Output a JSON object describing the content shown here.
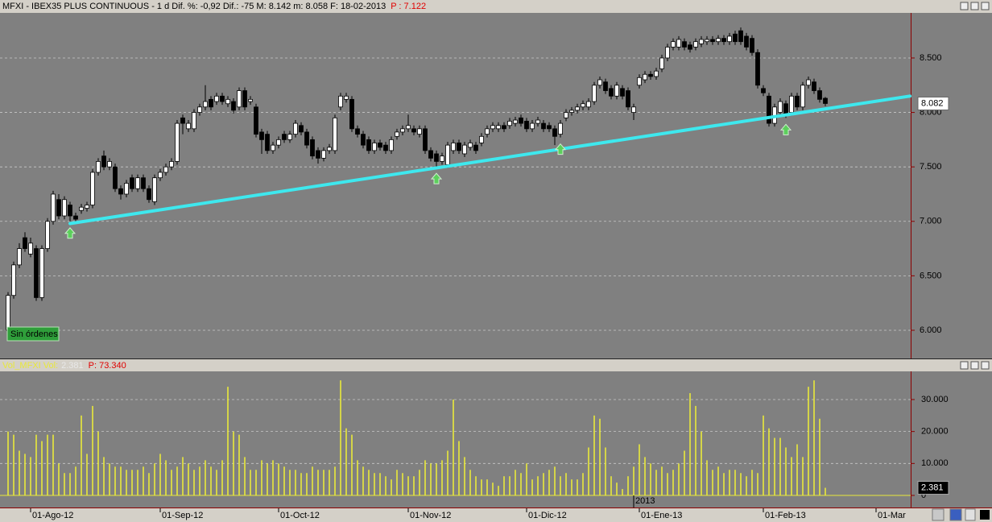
{
  "chart_data": [
    {
      "type": "candlestick",
      "title": "MFXI - IBEX35 PLUS CONTINUOUS - 1 d  Dif. %: -0,92  Dif.: -75  M: 8.142  m: 8.058  F: 18-02-2013",
      "title_price": "P : 7.122",
      "status": "Sin órdenes",
      "last_price_label": "8.082",
      "ylim": [
        5.741,
        8.914
      ],
      "yticks": [
        {
          "value": 6,
          "label": "6.000"
        },
        {
          "value": 6.5,
          "label": "6.500"
        },
        {
          "value": 7,
          "label": "7.000"
        },
        {
          "value": 7.5,
          "label": "7.500"
        },
        {
          "value": 8,
          "label": "8.000"
        },
        {
          "value": 8.5,
          "label": "8.500"
        }
      ],
      "grid": true,
      "up_color": "#ffffff",
      "down_color": "#000000",
      "trendline": {
        "x": [
          11,
          160
        ],
        "y": [
          6.98,
          8.15
        ],
        "color": "#3ee8ee"
      },
      "signals": [
        11,
        76,
        98,
        138
      ],
      "signal_color": "#5ccf5c",
      "ohlc": [
        [
          6.0,
          6.35,
          5.95,
          6.32
        ],
        [
          6.32,
          6.63,
          6.29,
          6.6
        ],
        [
          6.6,
          6.8,
          6.57,
          6.75
        ],
        [
          6.85,
          6.9,
          6.72,
          6.75
        ],
        [
          6.7,
          6.85,
          6.67,
          6.8
        ],
        [
          6.75,
          6.78,
          6.27,
          6.3
        ],
        [
          6.3,
          6.78,
          6.27,
          6.75
        ],
        [
          6.75,
          7.03,
          6.72,
          7.0
        ],
        [
          7.0,
          7.28,
          6.97,
          7.25
        ],
        [
          7.2,
          7.25,
          7.02,
          7.05
        ],
        [
          7.05,
          7.23,
          7.02,
          7.2
        ],
        [
          7.15,
          7.18,
          7.0,
          7.05
        ],
        [
          7.05,
          7.08,
          6.99,
          7.02
        ],
        [
          7.1,
          7.16,
          7.07,
          7.13
        ],
        [
          7.12,
          7.18,
          7.09,
          7.15
        ],
        [
          7.15,
          7.48,
          7.12,
          7.45
        ],
        [
          7.45,
          7.58,
          7.42,
          7.55
        ],
        [
          7.6,
          7.65,
          7.47,
          7.5
        ],
        [
          7.5,
          7.58,
          7.47,
          7.55
        ],
        [
          7.5,
          7.53,
          7.27,
          7.3
        ],
        [
          7.3,
          7.33,
          7.2,
          7.25
        ],
        [
          7.25,
          7.38,
          7.22,
          7.35
        ],
        [
          7.4,
          7.43,
          7.27,
          7.3
        ],
        [
          7.3,
          7.43,
          7.27,
          7.4
        ],
        [
          7.4,
          7.43,
          7.27,
          7.3
        ],
        [
          7.3,
          7.33,
          7.17,
          7.2
        ],
        [
          7.18,
          7.43,
          7.15,
          7.4
        ],
        [
          7.4,
          7.48,
          7.37,
          7.45
        ],
        [
          7.45,
          7.53,
          7.42,
          7.5
        ],
        [
          7.5,
          7.58,
          7.47,
          7.55
        ],
        [
          7.55,
          7.93,
          7.52,
          7.9
        ],
        [
          7.95,
          7.98,
          7.8,
          7.9
        ],
        [
          7.85,
          7.93,
          7.82,
          7.9
        ],
        [
          7.85,
          8.03,
          7.82,
          8.0
        ],
        [
          8.0,
          8.08,
          7.97,
          8.05
        ],
        [
          8.05,
          8.25,
          8.02,
          8.1
        ],
        [
          8.12,
          8.15,
          8.02,
          8.05
        ],
        [
          8.1,
          8.18,
          8.07,
          8.15
        ],
        [
          8.15,
          8.18,
          8.07,
          8.1
        ],
        [
          8.08,
          8.15,
          8.05,
          8.12
        ],
        [
          8.1,
          8.13,
          7.99,
          8.02
        ],
        [
          8.05,
          8.23,
          8.02,
          8.2
        ],
        [
          8.2,
          8.23,
          8.02,
          8.05
        ],
        [
          8.1,
          8.15,
          8.07,
          8.12
        ],
        [
          8.05,
          8.08,
          7.77,
          7.8
        ],
        [
          7.82,
          7.85,
          7.62,
          7.75
        ],
        [
          7.8,
          7.83,
          7.62,
          7.65
        ],
        [
          7.65,
          7.73,
          7.62,
          7.7
        ],
        [
          7.7,
          7.78,
          7.67,
          7.75
        ],
        [
          7.8,
          7.83,
          7.72,
          7.75
        ],
        [
          7.75,
          7.83,
          7.72,
          7.8
        ],
        [
          7.8,
          7.93,
          7.77,
          7.9
        ],
        [
          7.88,
          7.91,
          7.79,
          7.82
        ],
        [
          7.82,
          7.85,
          7.67,
          7.7
        ],
        [
          7.75,
          7.78,
          7.57,
          7.6
        ],
        [
          7.65,
          7.68,
          7.53,
          7.58
        ],
        [
          7.58,
          7.68,
          7.55,
          7.65
        ],
        [
          7.65,
          7.71,
          7.62,
          7.68
        ],
        [
          7.65,
          7.98,
          7.62,
          7.95
        ],
        [
          8.05,
          8.18,
          8.02,
          8.15
        ],
        [
          8.12,
          8.18,
          8.09,
          8.15
        ],
        [
          8.12,
          8.15,
          7.82,
          7.85
        ],
        [
          7.85,
          7.88,
          7.77,
          7.8
        ],
        [
          7.8,
          7.83,
          7.67,
          7.7
        ],
        [
          7.75,
          7.78,
          7.62,
          7.65
        ],
        [
          7.65,
          7.75,
          7.62,
          7.72
        ],
        [
          7.72,
          7.75,
          7.65,
          7.68
        ],
        [
          7.7,
          7.73,
          7.62,
          7.65
        ],
        [
          7.65,
          7.78,
          7.62,
          7.75
        ],
        [
          7.78,
          7.85,
          7.75,
          7.82
        ],
        [
          7.82,
          7.88,
          7.79,
          7.85
        ],
        [
          7.85,
          7.98,
          7.82,
          7.88
        ],
        [
          7.85,
          7.88,
          7.79,
          7.82
        ],
        [
          7.8,
          7.88,
          7.77,
          7.85
        ],
        [
          7.85,
          7.88,
          7.62,
          7.65
        ],
        [
          7.65,
          7.68,
          7.55,
          7.58
        ],
        [
          7.62,
          7.65,
          7.5,
          7.55
        ],
        [
          7.55,
          7.63,
          7.52,
          7.6
        ],
        [
          7.52,
          7.73,
          7.49,
          7.7
        ],
        [
          7.65,
          7.75,
          7.62,
          7.72
        ],
        [
          7.72,
          7.75,
          7.62,
          7.65
        ],
        [
          7.62,
          7.73,
          7.59,
          7.7
        ],
        [
          7.68,
          7.75,
          7.65,
          7.72
        ],
        [
          7.7,
          7.73,
          7.62,
          7.65
        ],
        [
          7.72,
          7.81,
          7.69,
          7.78
        ],
        [
          7.8,
          7.88,
          7.77,
          7.85
        ],
        [
          7.85,
          7.91,
          7.82,
          7.88
        ],
        [
          7.85,
          7.91,
          7.82,
          7.88
        ],
        [
          7.88,
          7.91,
          7.82,
          7.85
        ],
        [
          7.88,
          7.95,
          7.85,
          7.92
        ],
        [
          7.9,
          7.96,
          7.87,
          7.93
        ],
        [
          7.95,
          7.98,
          7.87,
          7.9
        ],
        [
          7.92,
          7.95,
          7.82,
          7.85
        ],
        [
          7.85,
          7.93,
          7.82,
          7.9
        ],
        [
          7.9,
          7.96,
          7.87,
          7.93
        ],
        [
          7.9,
          7.93,
          7.82,
          7.85
        ],
        [
          7.88,
          7.91,
          7.82,
          7.85
        ],
        [
          7.85,
          7.88,
          7.7,
          7.78
        ],
        [
          7.8,
          7.93,
          7.77,
          7.9
        ],
        [
          7.95,
          8.03,
          7.92,
          8.0
        ],
        [
          8.0,
          8.05,
          7.97,
          8.02
        ],
        [
          8.02,
          8.08,
          7.99,
          8.05
        ],
        [
          8.05,
          8.11,
          8.02,
          8.08
        ],
        [
          8.05,
          8.13,
          8.02,
          8.1
        ],
        [
          8.1,
          8.28,
          8.07,
          8.25
        ],
        [
          8.25,
          8.33,
          8.22,
          8.3
        ],
        [
          8.28,
          8.31,
          8.17,
          8.2
        ],
        [
          8.22,
          8.25,
          8.12,
          8.15
        ],
        [
          8.15,
          8.28,
          8.12,
          8.25
        ],
        [
          8.22,
          8.25,
          8.12,
          8.15
        ],
        [
          8.2,
          8.23,
          8.02,
          8.05
        ],
        [
          8.0,
          8.08,
          7.93,
          8.05
        ],
        [
          8.25,
          8.35,
          8.22,
          8.32
        ],
        [
          8.3,
          8.38,
          8.27,
          8.35
        ],
        [
          8.35,
          8.38,
          8.3,
          8.33
        ],
        [
          8.33,
          8.41,
          8.3,
          8.38
        ],
        [
          8.4,
          8.53,
          8.37,
          8.5
        ],
        [
          8.5,
          8.63,
          8.47,
          8.6
        ],
        [
          8.6,
          8.68,
          8.57,
          8.65
        ],
        [
          8.6,
          8.7,
          8.57,
          8.67
        ],
        [
          8.65,
          8.68,
          8.57,
          8.6
        ],
        [
          8.62,
          8.65,
          8.55,
          8.58
        ],
        [
          8.6,
          8.68,
          8.57,
          8.65
        ],
        [
          8.63,
          8.7,
          8.6,
          8.67
        ],
        [
          8.65,
          8.7,
          8.62,
          8.67
        ],
        [
          8.67,
          8.7,
          8.62,
          8.65
        ],
        [
          8.65,
          8.71,
          8.62,
          8.68
        ],
        [
          8.68,
          8.71,
          8.62,
          8.65
        ],
        [
          8.65,
          8.73,
          8.62,
          8.7
        ],
        [
          8.72,
          8.75,
          8.62,
          8.65
        ],
        [
          8.75,
          8.78,
          8.62,
          8.65
        ],
        [
          8.7,
          8.73,
          8.57,
          8.6
        ],
        [
          8.68,
          8.71,
          8.52,
          8.55
        ],
        [
          8.55,
          8.58,
          8.22,
          8.25
        ],
        [
          8.22,
          8.25,
          8.15,
          8.18
        ],
        [
          8.15,
          8.18,
          7.87,
          7.9
        ],
        [
          7.9,
          8.08,
          7.87,
          8.05
        ],
        [
          8.0,
          8.13,
          7.97,
          8.1
        ],
        [
          8.08,
          8.11,
          7.95,
          7.98
        ],
        [
          8.0,
          8.18,
          7.97,
          8.15
        ],
        [
          8.15,
          8.18,
          8.02,
          8.05
        ],
        [
          8.05,
          8.28,
          8.02,
          8.25
        ],
        [
          8.25,
          8.33,
          8.22,
          8.3
        ],
        [
          8.28,
          8.31,
          8.17,
          8.2
        ],
        [
          8.2,
          8.23,
          8.09,
          8.12
        ],
        [
          8.13,
          8.142,
          8.058,
          8.082
        ]
      ]
    },
    {
      "type": "bar",
      "title": "Vol_MFXI  Vol:",
      "title_value": "2.381",
      "title_price": "P: 73.340",
      "last_value_label": "2.381",
      "year_label": "2013",
      "year_index": 111,
      "color": "#e8e83a",
      "ylim": [
        0,
        38564
      ],
      "yticks": [
        0,
        {
          "value": 10000,
          "label": "10.000"
        },
        {
          "value": 20000,
          "label": "20.000"
        },
        {
          "value": 30000,
          "label": "30.000"
        }
      ],
      "grid": true,
      "categories": [
        null,
        null,
        null,
        null,
        "01-Ago-12",
        null,
        null,
        null,
        null,
        null,
        null,
        null,
        null,
        null,
        null,
        null,
        null,
        null,
        null,
        null,
        null,
        null,
        null,
        null,
        null,
        null,
        null,
        "01-Sep-12",
        null,
        null,
        null,
        null,
        null,
        null,
        null,
        null,
        null,
        null,
        null,
        null,
        null,
        null,
        null,
        null,
        null,
        null,
        null,
        null,
        "01-Oct-12",
        null,
        null,
        null,
        null,
        null,
        null,
        null,
        null,
        null,
        null,
        null,
        null,
        null,
        null,
        null,
        null,
        null,
        null,
        null,
        null,
        null,
        null,
        "01-Nov-12",
        null,
        null,
        null,
        null,
        null,
        null,
        null,
        null,
        null,
        null,
        null,
        null,
        null,
        null,
        null,
        null,
        null,
        null,
        null,
        null,
        "01-Dic-12",
        null,
        null,
        null,
        null,
        null,
        null,
        null,
        null,
        null,
        null,
        null,
        null,
        null,
        null,
        null,
        null,
        null,
        null,
        null,
        "01-Ene-13",
        null,
        null,
        null,
        null,
        null,
        null,
        null,
        null,
        null,
        null,
        null,
        null,
        null,
        null,
        null,
        null,
        null,
        null,
        null,
        null,
        null,
        "01-Feb-13",
        null,
        null,
        null,
        null,
        null,
        null,
        null,
        null,
        null,
        null,
        null,
        null,
        null,
        null,
        null,
        null,
        null,
        null,
        null,
        "01-Mar",
        null,
        null,
        null,
        null,
        null
      ],
      "values": [
        20000,
        19000,
        14000,
        13000,
        12000,
        19000,
        17000,
        19000,
        19000,
        10000,
        7000,
        7000,
        9000,
        25000,
        13000,
        28000,
        20000,
        12000,
        10000,
        9000,
        9000,
        8000,
        8000,
        8000,
        9000,
        7000,
        10000,
        13000,
        11000,
        8000,
        9000,
        12000,
        10000,
        8000,
        9000,
        11000,
        9000,
        8000,
        11000,
        34000,
        20000,
        19000,
        12000,
        8000,
        8000,
        11000,
        10000,
        11000,
        10000,
        9000,
        8000,
        8000,
        7000,
        7000,
        9000,
        8000,
        8000,
        8000,
        9000,
        36000,
        21000,
        19000,
        11000,
        9000,
        8000,
        7000,
        7000,
        6000,
        5000,
        8000,
        7000,
        6000,
        6000,
        8000,
        11000,
        10000,
        10000,
        11000,
        14000,
        30000,
        17000,
        12000,
        8000,
        6000,
        5000,
        5000,
        4000,
        3000,
        6000,
        6000,
        8000,
        7000,
        10000,
        5000,
        6000,
        7000,
        8000,
        9000,
        6000,
        7000,
        5000,
        5000,
        7000,
        15000,
        25000,
        24000,
        15000,
        6000,
        4000,
        2000,
        6000,
        9000,
        16000,
        12000,
        10000,
        8000,
        9000,
        7000,
        8000,
        10000,
        14000,
        32000,
        28000,
        20000,
        11000,
        8000,
        9000,
        7000,
        8000,
        8000,
        7000,
        6000,
        8000,
        7000,
        25000,
        21000,
        18000,
        18000,
        15000,
        12000,
        16000,
        12000,
        34000,
        36000,
        24000,
        2381,
        null,
        null,
        null,
        null,
        null,
        null,
        null,
        null,
        null,
        null,
        null,
        null,
        null,
        null
      ]
    }
  ]
}
